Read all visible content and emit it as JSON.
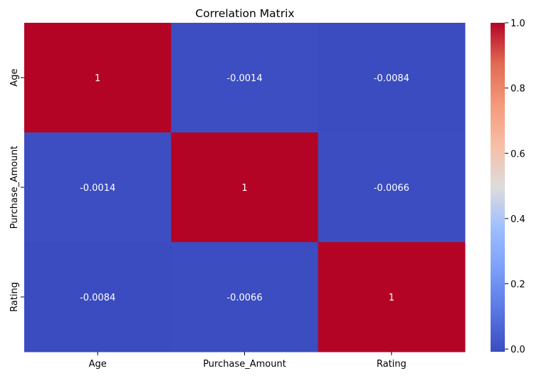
{
  "chart_data": {
    "type": "heatmap",
    "title": "Correlation Matrix",
    "x_categories": [
      "Age",
      "Purchase_Amount",
      "Rating"
    ],
    "y_categories": [
      "Age",
      "Purchase_Amount",
      "Rating"
    ],
    "values": [
      [
        1,
        -0.0014,
        -0.0084
      ],
      [
        -0.0014,
        1,
        -0.0066
      ],
      [
        -0.0084,
        -0.0066,
        1
      ]
    ],
    "annotations": [
      [
        "1",
        "-0.0014",
        "-0.0084"
      ],
      [
        "-0.0014",
        "1",
        "-0.0066"
      ],
      [
        "-0.0084",
        "-0.0066",
        "1"
      ]
    ],
    "colormap": "coolwarm",
    "colorbar": {
      "range": [
        -0.0084,
        1.0
      ],
      "ticks": [
        0.0,
        0.2,
        0.4,
        0.6,
        0.8,
        1.0
      ],
      "tick_labels": [
        "0.0",
        "0.2",
        "0.4",
        "0.6",
        "0.8",
        "1.0"
      ]
    },
    "xlabel": "",
    "ylabel": "",
    "legend": "colorbar-right"
  }
}
